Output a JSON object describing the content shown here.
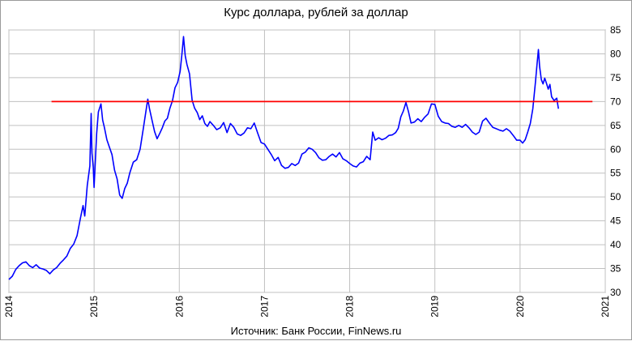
{
  "chart_data": {
    "type": "line",
    "title": "Курс доллара, рублей за доллар",
    "source": "Источник: Банк России, FinNews.ru",
    "xlabel": "",
    "ylabel": "",
    "xlim": [
      2014,
      2021
    ],
    "ylim": [
      30,
      85
    ],
    "x_ticks": [
      "2014",
      "2015",
      "2016",
      "2017",
      "2018",
      "2019",
      "2020",
      "2021"
    ],
    "y_ticks": [
      "30",
      "35",
      "40",
      "45",
      "50",
      "55",
      "60",
      "65",
      "70",
      "75",
      "80",
      "85"
    ],
    "grid": true,
    "y_axis_side": "right",
    "x_tick_rotation": -90,
    "legend": "none",
    "series": [
      {
        "color": "#0000ff",
        "points": [
          [
            2014.0,
            32.7
          ],
          [
            2014.04,
            33.4
          ],
          [
            2014.08,
            34.8
          ],
          [
            2014.12,
            35.6
          ],
          [
            2014.16,
            36.2
          ],
          [
            2014.2,
            36.4
          ],
          [
            2014.24,
            35.6
          ],
          [
            2014.28,
            35.2
          ],
          [
            2014.32,
            35.8
          ],
          [
            2014.36,
            35.1
          ],
          [
            2014.4,
            34.9
          ],
          [
            2014.44,
            34.6
          ],
          [
            2014.48,
            33.9
          ],
          [
            2014.52,
            34.7
          ],
          [
            2014.56,
            35.2
          ],
          [
            2014.6,
            36.1
          ],
          [
            2014.64,
            36.8
          ],
          [
            2014.68,
            37.6
          ],
          [
            2014.72,
            39.2
          ],
          [
            2014.76,
            40.1
          ],
          [
            2014.8,
            41.9
          ],
          [
            2014.84,
            45.6
          ],
          [
            2014.87,
            48.2
          ],
          [
            2014.89,
            46.0
          ],
          [
            2014.92,
            52.4
          ],
          [
            2014.95,
            56.5
          ],
          [
            2014.965,
            67.5
          ],
          [
            2014.975,
            59.2
          ],
          [
            2014.99,
            56.2
          ],
          [
            2015.0,
            52.0
          ],
          [
            2015.03,
            63.3
          ],
          [
            2015.05,
            67.8
          ],
          [
            2015.08,
            69.5
          ],
          [
            2015.1,
            66.1
          ],
          [
            2015.12,
            64.6
          ],
          [
            2015.15,
            62.0
          ],
          [
            2015.18,
            60.4
          ],
          [
            2015.21,
            58.9
          ],
          [
            2015.24,
            55.6
          ],
          [
            2015.27,
            53.8
          ],
          [
            2015.3,
            50.4
          ],
          [
            2015.33,
            49.7
          ],
          [
            2015.36,
            51.8
          ],
          [
            2015.39,
            52.9
          ],
          [
            2015.42,
            55.1
          ],
          [
            2015.46,
            57.3
          ],
          [
            2015.5,
            57.8
          ],
          [
            2015.54,
            60.0
          ],
          [
            2015.58,
            64.6
          ],
          [
            2015.61,
            68.2
          ],
          [
            2015.63,
            70.5
          ],
          [
            2015.65,
            68.5
          ],
          [
            2015.68,
            66.1
          ],
          [
            2015.71,
            63.7
          ],
          [
            2015.74,
            62.2
          ],
          [
            2015.77,
            63.3
          ],
          [
            2015.8,
            64.5
          ],
          [
            2015.83,
            65.9
          ],
          [
            2015.86,
            66.5
          ],
          [
            2015.89,
            68.6
          ],
          [
            2015.92,
            70.2
          ],
          [
            2015.95,
            72.9
          ],
          [
            2015.98,
            74.0
          ],
          [
            2016.01,
            76.3
          ],
          [
            2016.03,
            79.7
          ],
          [
            2016.05,
            83.6
          ],
          [
            2016.07,
            79.6
          ],
          [
            2016.09,
            77.8
          ],
          [
            2016.12,
            75.8
          ],
          [
            2016.15,
            70.3
          ],
          [
            2016.18,
            68.6
          ],
          [
            2016.21,
            67.7
          ],
          [
            2016.24,
            66.2
          ],
          [
            2016.27,
            67.0
          ],
          [
            2016.3,
            65.4
          ],
          [
            2016.33,
            64.8
          ],
          [
            2016.36,
            65.8
          ],
          [
            2016.4,
            65.0
          ],
          [
            2016.44,
            64.1
          ],
          [
            2016.48,
            64.5
          ],
          [
            2016.52,
            65.6
          ],
          [
            2016.56,
            63.5
          ],
          [
            2016.6,
            65.4
          ],
          [
            2016.64,
            64.6
          ],
          [
            2016.68,
            63.2
          ],
          [
            2016.72,
            62.9
          ],
          [
            2016.76,
            63.4
          ],
          [
            2016.8,
            64.5
          ],
          [
            2016.84,
            64.3
          ],
          [
            2016.88,
            65.5
          ],
          [
            2016.92,
            63.4
          ],
          [
            2016.96,
            61.4
          ],
          [
            2017.0,
            61.1
          ],
          [
            2017.04,
            60.0
          ],
          [
            2017.08,
            58.9
          ],
          [
            2017.12,
            57.6
          ],
          [
            2017.16,
            58.3
          ],
          [
            2017.2,
            56.6
          ],
          [
            2017.24,
            56.0
          ],
          [
            2017.28,
            56.2
          ],
          [
            2017.32,
            57.0
          ],
          [
            2017.36,
            56.6
          ],
          [
            2017.4,
            57.1
          ],
          [
            2017.44,
            59.0
          ],
          [
            2017.48,
            59.4
          ],
          [
            2017.52,
            60.3
          ],
          [
            2017.56,
            60.0
          ],
          [
            2017.6,
            59.3
          ],
          [
            2017.64,
            58.2
          ],
          [
            2017.68,
            57.7
          ],
          [
            2017.72,
            57.8
          ],
          [
            2017.76,
            58.5
          ],
          [
            2017.8,
            59.0
          ],
          [
            2017.84,
            58.4
          ],
          [
            2017.88,
            59.3
          ],
          [
            2017.92,
            58.0
          ],
          [
            2017.96,
            57.6
          ],
          [
            2018.0,
            57.0
          ],
          [
            2018.04,
            56.5
          ],
          [
            2018.08,
            56.3
          ],
          [
            2018.12,
            57.1
          ],
          [
            2018.16,
            57.4
          ],
          [
            2018.2,
            58.5
          ],
          [
            2018.24,
            57.8
          ],
          [
            2018.27,
            63.6
          ],
          [
            2018.3,
            61.9
          ],
          [
            2018.34,
            62.4
          ],
          [
            2018.38,
            62.0
          ],
          [
            2018.42,
            62.3
          ],
          [
            2018.46,
            62.9
          ],
          [
            2018.5,
            63.0
          ],
          [
            2018.54,
            63.5
          ],
          [
            2018.57,
            64.4
          ],
          [
            2018.6,
            66.8
          ],
          [
            2018.63,
            68.0
          ],
          [
            2018.66,
            69.8
          ],
          [
            2018.69,
            67.9
          ],
          [
            2018.72,
            65.5
          ],
          [
            2018.76,
            65.7
          ],
          [
            2018.8,
            66.4
          ],
          [
            2018.84,
            65.8
          ],
          [
            2018.88,
            66.7
          ],
          [
            2018.92,
            67.4
          ],
          [
            2018.96,
            69.5
          ],
          [
            2019.0,
            69.4
          ],
          [
            2019.04,
            66.9
          ],
          [
            2019.08,
            65.8
          ],
          [
            2019.12,
            65.5
          ],
          [
            2019.16,
            65.4
          ],
          [
            2019.2,
            64.8
          ],
          [
            2019.24,
            64.6
          ],
          [
            2019.28,
            65.0
          ],
          [
            2019.32,
            64.6
          ],
          [
            2019.36,
            65.2
          ],
          [
            2019.4,
            64.5
          ],
          [
            2019.44,
            63.6
          ],
          [
            2019.48,
            63.1
          ],
          [
            2019.52,
            63.6
          ],
          [
            2019.56,
            65.9
          ],
          [
            2019.6,
            66.5
          ],
          [
            2019.64,
            65.5
          ],
          [
            2019.68,
            64.6
          ],
          [
            2019.72,
            64.3
          ],
          [
            2019.76,
            64.0
          ],
          [
            2019.8,
            63.8
          ],
          [
            2019.84,
            64.3
          ],
          [
            2019.88,
            63.8
          ],
          [
            2019.92,
            62.9
          ],
          [
            2019.96,
            61.9
          ],
          [
            2020.0,
            61.9
          ],
          [
            2020.03,
            61.3
          ],
          [
            2020.06,
            62.0
          ],
          [
            2020.09,
            63.6
          ],
          [
            2020.12,
            65.4
          ],
          [
            2020.15,
            68.5
          ],
          [
            2020.18,
            74.0
          ],
          [
            2020.2,
            78.0
          ],
          [
            2020.215,
            80.9
          ],
          [
            2020.23,
            77.3
          ],
          [
            2020.25,
            74.6
          ],
          [
            2020.27,
            73.7
          ],
          [
            2020.29,
            74.9
          ],
          [
            2020.31,
            73.8
          ],
          [
            2020.33,
            72.6
          ],
          [
            2020.35,
            73.6
          ],
          [
            2020.37,
            71.0
          ],
          [
            2020.4,
            70.2
          ],
          [
            2020.43,
            70.7
          ],
          [
            2020.45,
            68.5
          ]
        ]
      },
      {
        "color": "#ff0000",
        "points": [
          [
            2014.5,
            70
          ],
          [
            2020.85,
            70
          ]
        ]
      }
    ]
  }
}
